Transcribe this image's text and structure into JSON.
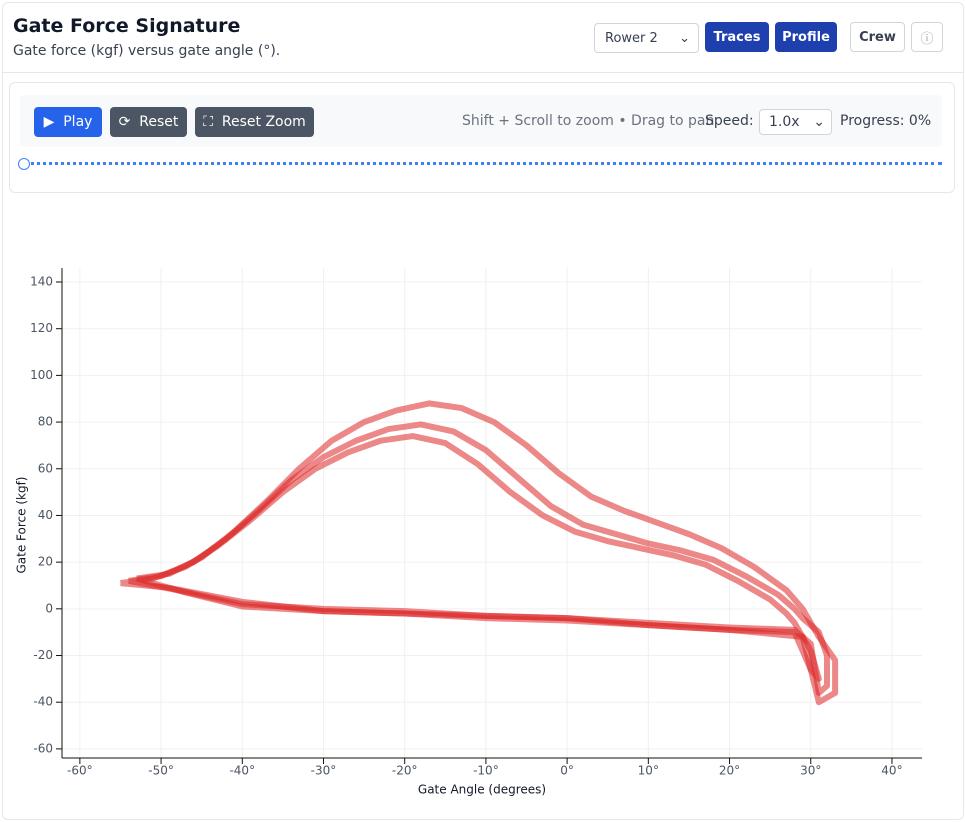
{
  "header": {
    "title": "Gate Force Signature",
    "subtitle": "Gate force (kgf) versus gate angle (°).",
    "rower_select": "Rower 2",
    "buttons": [
      "Traces",
      "Profile",
      "Crew"
    ]
  },
  "controls": {
    "play": "Play",
    "reset": "Reset",
    "reset_zoom": "Reset Zoom",
    "hint": "Shift + Scroll to zoom • Drag to pan",
    "speed_label": "Speed:",
    "speed": "1.0x",
    "progress": "Progress: 0%"
  },
  "chart_data": {
    "type": "line",
    "x_label": "Gate Angle (degrees)",
    "y_label": "Gate Force (kgf)",
    "xlim": [
      -62.2,
      43.7
    ],
    "ylim": [
      -63.9,
      146
    ],
    "xticks": [
      {
        "value": -60,
        "label": "-60°"
      },
      {
        "value": -50,
        "label": "-50°"
      },
      {
        "value": -40,
        "label": "-40°"
      },
      {
        "value": -30,
        "label": "-30°"
      },
      {
        "value": -20,
        "label": "-20°"
      },
      {
        "value": -10,
        "label": "-10°"
      },
      {
        "value": 0,
        "label": "0°"
      },
      {
        "value": 10,
        "label": "10°"
      },
      {
        "value": 20,
        "label": "20°"
      },
      {
        "value": 30,
        "label": "30°"
      },
      {
        "value": 40,
        "label": "40°"
      }
    ],
    "yticks": [
      -60,
      -40,
      -20,
      0,
      20,
      40,
      60,
      80,
      100,
      120,
      140
    ],
    "grid": true,
    "series": [
      {
        "color": "#dc2626",
        "x": [
          -54,
          -50,
          -46,
          -42,
          -38,
          -34,
          -30,
          -26,
          -22,
          -18,
          -14,
          -10,
          -6,
          -2,
          2,
          6,
          10,
          14,
          18,
          22,
          26,
          28,
          29,
          31,
          32,
          32,
          31,
          30,
          28,
          20,
          10,
          0,
          -10,
          -20,
          -30,
          -40,
          -48,
          -54
        ],
        "values": [
          12,
          14,
          20,
          30,
          42,
          55,
          65,
          72,
          77,
          79,
          76,
          68,
          56,
          44,
          36,
          32,
          28,
          25,
          21,
          14,
          6,
          0,
          -4,
          -10,
          -20,
          -33,
          -36,
          -15,
          -9,
          -8,
          -6,
          -4,
          -3,
          -1,
          0,
          2,
          8,
          12
        ]
      },
      {
        "color": "#dc2626",
        "x": [
          -53,
          -49,
          -45,
          -41,
          -37,
          -33,
          -29,
          -25,
          -21,
          -17,
          -13,
          -9,
          -5,
          -1,
          3,
          7,
          11,
          15,
          19,
          23,
          27,
          29,
          31,
          33,
          33,
          31,
          29,
          20,
          10,
          0,
          -10,
          -20,
          -30,
          -40,
          -47,
          -53
        ],
        "values": [
          13,
          15,
          22,
          33,
          46,
          60,
          72,
          80,
          85,
          88,
          86,
          80,
          70,
          58,
          48,
          42,
          37,
          32,
          26,
          18,
          8,
          0,
          -12,
          -22,
          -36,
          -40,
          -12,
          -9,
          -7,
          -5,
          -4,
          -2,
          -1,
          1,
          7,
          13
        ]
      },
      {
        "color": "#dc2626",
        "x": [
          -55,
          -51,
          -47,
          -43,
          -39,
          -35,
          -31,
          -27,
          -23,
          -19,
          -15,
          -11,
          -7,
          -3,
          1,
          5,
          9,
          13,
          17,
          21,
          25,
          27,
          28,
          30,
          31,
          30,
          28,
          20,
          10,
          0,
          -10,
          -20,
          -30,
          -40,
          -49,
          -55
        ],
        "values": [
          11,
          13,
          18,
          27,
          38,
          50,
          60,
          67,
          72,
          74,
          71,
          62,
          50,
          40,
          33,
          29,
          26,
          23,
          19,
          12,
          4,
          -2,
          -6,
          -18,
          -30,
          -26,
          -10,
          -9,
          -7,
          -4,
          -3,
          -2,
          -1,
          3,
          9,
          11
        ]
      }
    ]
  }
}
